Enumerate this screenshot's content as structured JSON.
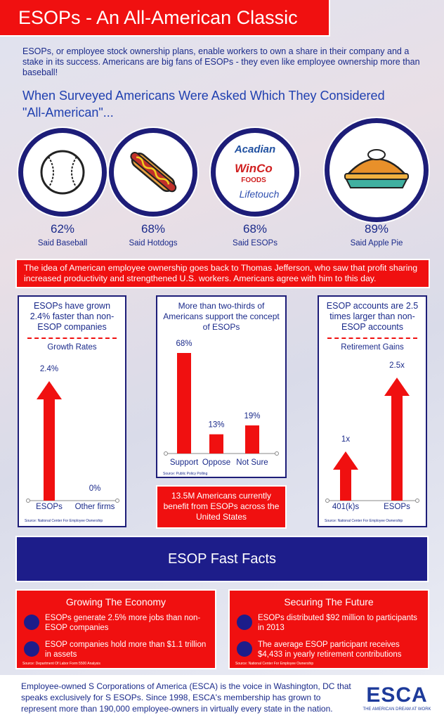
{
  "header": {
    "title": "ESOPs - An All-American Classic",
    "intro": "ESOPs, or employee stock ownership plans, enable workers to own a share in their company and a stake in its success. Americans are big fans of ESOPs - they even like employee ownership more than baseball!"
  },
  "survey": {
    "heading": "When Surveyed Americans Were Asked Which They Considered \"All-American\"...",
    "logos": [
      "Acadian",
      "WinCo",
      "FOODS",
      "Lifetouch"
    ],
    "items": [
      {
        "percent": "62%",
        "caption": "Said Baseball"
      },
      {
        "percent": "68%",
        "caption": "Said Hotdogs"
      },
      {
        "percent": "68%",
        "caption": "Said ESOPs"
      },
      {
        "percent": "89%",
        "caption": "Said Apple Pie"
      }
    ]
  },
  "history": "The idea of American employee ownership goes back to Thomas Jefferson, who saw that profit sharing increased productivity and strengthened U.S. workers. Americans agree with him to this day.",
  "growth": {
    "type": "arrow",
    "text": "ESOPs have grown 2.4% faster than non-ESOP companies",
    "title": "Growth Rates",
    "categories": [
      "ESOPs",
      "Other firms"
    ],
    "values": [
      2.4,
      0
    ],
    "value_labels": [
      "2.4%",
      "0%"
    ],
    "color": "#f01010",
    "source": "Source: National Center For Employee Ownership"
  },
  "support": {
    "type": "bar",
    "text": "More than two-thirds of Americans support the concept of ESOPs",
    "categories": [
      "Support",
      "Oppose",
      "Not Sure"
    ],
    "values": [
      68,
      13,
      19
    ],
    "value_labels": [
      "68%",
      "13%",
      "19%"
    ],
    "color": "#f01010",
    "source": "Source: Public Policy Polling"
  },
  "beneficiaries": "13.5M Americans currently benefit from ESOPs across the United States",
  "retirement": {
    "type": "arrow",
    "text": "ESOP accounts are 2.5 times larger than non-ESOP accounts",
    "title": "Retirement Gains",
    "categories": [
      "401(k)s",
      "ESOPs"
    ],
    "values": [
      1,
      2.5
    ],
    "value_labels": [
      "1x",
      "2.5x"
    ],
    "color": "#f01010",
    "source": "Source: National Center For Employee Ownership"
  },
  "fast_facts": {
    "title": "ESOP Fast Facts",
    "panels": [
      {
        "heading": "Growing The Economy",
        "items": [
          "ESOPs generate 2.5% more jobs than non-ESOP companies",
          "ESOP companies hold more than $1.1 trillion in assets"
        ],
        "source": "Source: Department Of Labor Form 5500 Analysis"
      },
      {
        "heading": "Securing The Future",
        "items": [
          "ESOPs distributed $92 million to participants in 2013",
          "The average ESOP participant receives $4,433 in yearly retirement contributions"
        ],
        "source": "Source: National Center For Employee Ownership"
      }
    ]
  },
  "footer": {
    "text": "Employee-owned S Corporations of America (ESCA) is the voice in Washington, DC that speaks exclusively for S ESOPs. Since 1998, ESCA's membership has grown to represent more than 190,000 employee-owners in virtually every state in the nation.",
    "logo": "ESCA",
    "tagline": "THE AMERICAN DREAM AT WORK"
  }
}
